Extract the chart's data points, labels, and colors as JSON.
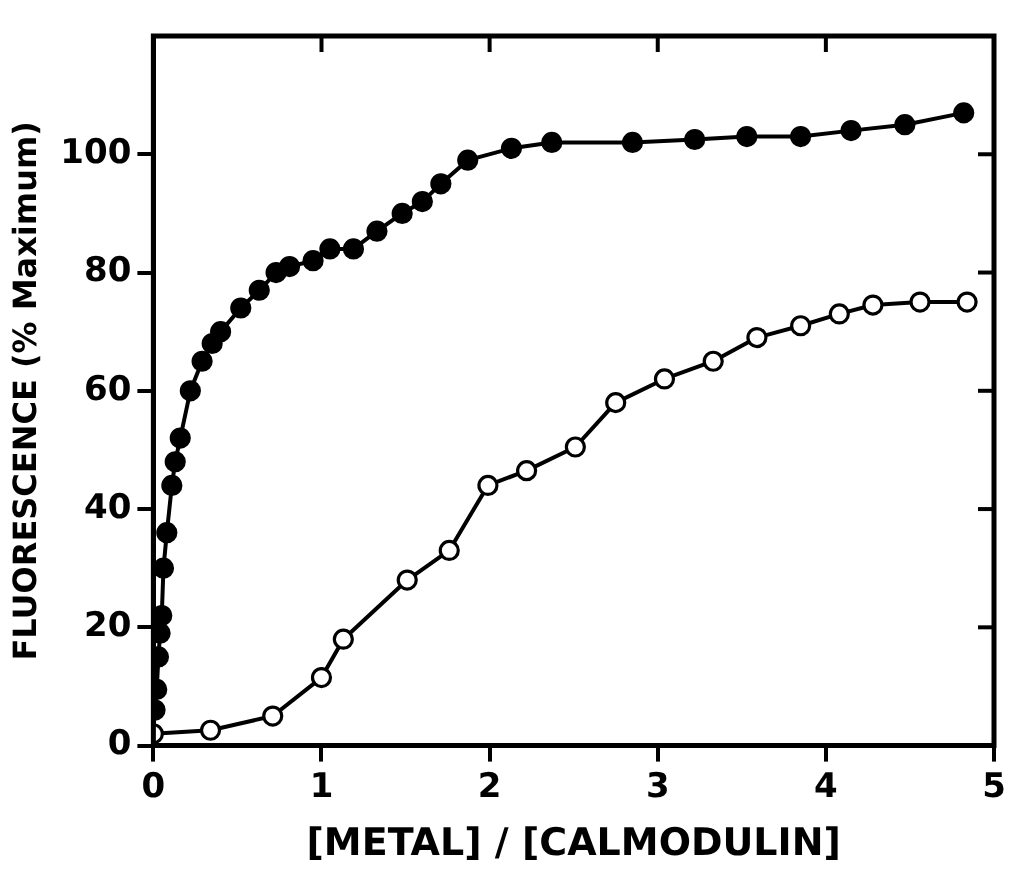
{
  "chart_data": {
    "type": "line",
    "xlabel": "[METAL] / [CALMODULIN]",
    "ylabel": "FLUORESCENCE (% Maximum)",
    "xlim": [
      0,
      5
    ],
    "xticks": [
      0,
      1,
      2,
      3,
      4,
      5
    ],
    "ylim": [
      0,
      120
    ],
    "yticks": [
      0,
      20,
      40,
      60,
      80,
      100
    ],
    "grid": false,
    "legend": false,
    "marker": "circle",
    "line_style": "solid",
    "series": [
      {
        "color": "#000000",
        "x": [
          0.01,
          0.02,
          0.03,
          0.04,
          0.05,
          0.06,
          0.08,
          0.11,
          0.13,
          0.16,
          0.22,
          0.29,
          0.35,
          0.4,
          0.52,
          0.63,
          0.73,
          0.81,
          0.95,
          1.05,
          1.19,
          1.33,
          1.48,
          1.6,
          1.71,
          1.87,
          2.13,
          2.37,
          2.85,
          3.22,
          3.53,
          3.85,
          4.15,
          4.47,
          4.82
        ],
        "values": [
          6,
          9.5,
          15,
          19,
          22,
          30,
          36,
          44,
          48,
          52,
          60,
          65,
          68,
          70,
          74,
          77,
          80,
          81,
          82,
          84,
          84,
          87,
          90,
          92,
          95,
          99,
          101,
          102,
          102,
          102.5,
          103,
          103,
          104,
          105,
          107
        ]
      },
      {
        "color": "#000000",
        "x": [
          0,
          0.34,
          0.71,
          1.0,
          1.13,
          1.51,
          1.76,
          1.99,
          2.22,
          2.51,
          2.75,
          3.04,
          3.33,
          3.59,
          3.85,
          4.08,
          4.28,
          4.56,
          4.84
        ],
        "values": [
          2,
          2.6,
          5,
          11.5,
          18,
          28,
          33,
          44,
          46.5,
          50.5,
          58,
          62,
          65,
          69,
          71,
          73,
          74.5,
          75,
          75
        ]
      }
    ]
  }
}
